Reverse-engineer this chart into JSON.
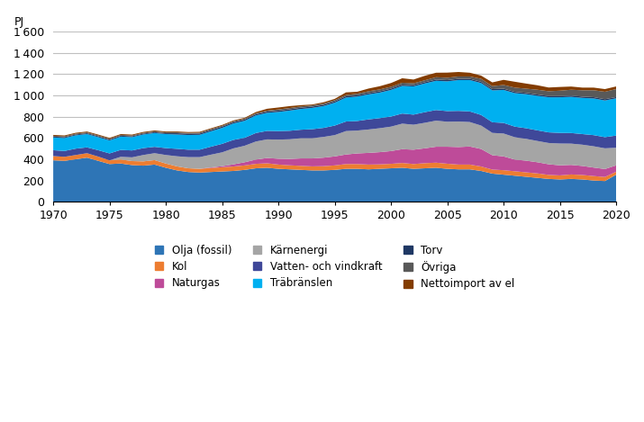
{
  "ylabel": "PJ",
  "xlim": [
    1970,
    2020
  ],
  "ylim": [
    0,
    1600
  ],
  "yticks": [
    0,
    200,
    400,
    600,
    800,
    1000,
    1200,
    1400,
    1600
  ],
  "xticks": [
    1970,
    1975,
    1980,
    1985,
    1990,
    1995,
    2000,
    2005,
    2010,
    2015,
    2020
  ],
  "years": [
    1970,
    1971,
    1972,
    1973,
    1974,
    1975,
    1976,
    1977,
    1978,
    1979,
    1980,
    1981,
    1982,
    1983,
    1984,
    1985,
    1986,
    1987,
    1988,
    1989,
    1990,
    1991,
    1992,
    1993,
    1994,
    1995,
    1996,
    1997,
    1998,
    1999,
    2000,
    2001,
    2002,
    2003,
    2004,
    2005,
    2006,
    2007,
    2008,
    2009,
    2010,
    2011,
    2012,
    2013,
    2014,
    2015,
    2016,
    2017,
    2018,
    2019,
    2020
  ],
  "series": {
    "Olja (fossil)": {
      "color": "#2E75B6",
      "values": [
        390,
        385,
        400,
        415,
        385,
        355,
        360,
        345,
        340,
        350,
        320,
        295,
        280,
        275,
        280,
        285,
        290,
        300,
        315,
        320,
        310,
        305,
        300,
        295,
        295,
        300,
        310,
        310,
        305,
        310,
        315,
        320,
        310,
        315,
        320,
        310,
        305,
        305,
        290,
        265,
        255,
        245,
        235,
        225,
        215,
        210,
        215,
        210,
        200,
        195,
        255
      ]
    },
    "Kol": {
      "color": "#ED7D31",
      "values": [
        40,
        38,
        40,
        42,
        40,
        35,
        38,
        38,
        40,
        42,
        40,
        38,
        35,
        35,
        38,
        40,
        42,
        42,
        42,
        42,
        40,
        38,
        38,
        38,
        40,
        42,
        45,
        45,
        45,
        42,
        42,
        45,
        45,
        48,
        48,
        48,
        45,
        45,
        42,
        38,
        42,
        42,
        42,
        42,
        38,
        38,
        42,
        42,
        42,
        38,
        28
      ]
    },
    "Naturgas": {
      "color": "#BE4B99",
      "values": [
        0,
        0,
        0,
        0,
        0,
        0,
        0,
        0,
        0,
        0,
        0,
        0,
        0,
        0,
        5,
        10,
        20,
        30,
        40,
        50,
        55,
        60,
        70,
        75,
        80,
        85,
        90,
        100,
        110,
        115,
        120,
        130,
        135,
        140,
        150,
        160,
        165,
        170,
        165,
        135,
        130,
        110,
        110,
        105,
        100,
        95,
        90,
        85,
        80,
        75,
        60
      ]
    },
    "Kärnenergi": {
      "color": "#A5A5A5",
      "values": [
        0,
        0,
        0,
        0,
        0,
        0,
        25,
        35,
        60,
        65,
        80,
        95,
        105,
        110,
        120,
        130,
        150,
        155,
        170,
        175,
        180,
        185,
        190,
        190,
        195,
        200,
        220,
        215,
        220,
        225,
        230,
        240,
        235,
        240,
        245,
        235,
        240,
        230,
        220,
        210,
        215,
        210,
        205,
        200,
        200,
        205,
        200,
        200,
        200,
        195,
        165
      ]
    },
    "Vatten- och vindkraft": {
      "color": "#3F4899",
      "values": [
        55,
        55,
        60,
        55,
        60,
        65,
        65,
        65,
        65,
        60,
        65,
        70,
        70,
        70,
        75,
        80,
        80,
        75,
        80,
        80,
        80,
        80,
        80,
        85,
        85,
        90,
        90,
        90,
        95,
        95,
        95,
        95,
        95,
        100,
        100,
        100,
        100,
        100,
        100,
        100,
        100,
        100,
        100,
        100,
        100,
        100,
        100,
        100,
        105,
        105,
        115
      ]
    },
    "Träbränslen": {
      "color": "#00B0F0",
      "values": [
        120,
        122,
        125,
        125,
        123,
        122,
        125,
        125,
        128,
        130,
        132,
        135,
        138,
        140,
        145,
        150,
        155,
        160,
        165,
        170,
        180,
        190,
        195,
        200,
        205,
        215,
        225,
        230,
        235,
        240,
        250,
        260,
        265,
        270,
        275,
        280,
        290,
        295,
        300,
        300,
        310,
        315,
        320,
        325,
        330,
        335,
        340,
        340,
        345,
        345,
        350
      ]
    },
    "Torv": {
      "color": "#1F3864",
      "values": [
        8,
        8,
        8,
        8,
        8,
        8,
        8,
        8,
        8,
        8,
        8,
        12,
        12,
        12,
        12,
        12,
        12,
        12,
        12,
        12,
        12,
        12,
        12,
        12,
        12,
        12,
        12,
        12,
        12,
        12,
        12,
        12,
        12,
        12,
        12,
        12,
        12,
        12,
        12,
        12,
        12,
        12,
        12,
        12,
        12,
        12,
        12,
        12,
        12,
        12,
        12
      ]
    },
    "Övriga": {
      "color": "#595959",
      "values": [
        8,
        8,
        8,
        8,
        8,
        8,
        8,
        8,
        8,
        8,
        8,
        8,
        8,
        8,
        8,
        8,
        8,
        8,
        8,
        8,
        12,
        12,
        12,
        12,
        12,
        12,
        12,
        15,
        18,
        18,
        18,
        18,
        18,
        18,
        22,
        22,
        22,
        22,
        28,
        28,
        35,
        40,
        40,
        45,
        45,
        50,
        55,
        60,
        65,
        70,
        75
      ]
    },
    "Nettoimport av el": {
      "color": "#833C00",
      "values": [
        8,
        8,
        8,
        8,
        8,
        8,
        8,
        8,
        8,
        8,
        8,
        8,
        8,
        8,
        8,
        8,
        8,
        8,
        12,
        18,
        18,
        18,
        12,
        8,
        12,
        12,
        25,
        18,
        25,
        30,
        35,
        42,
        35,
        42,
        42,
        48,
        42,
        35,
        30,
        35,
        48,
        55,
        48,
        42,
        35,
        35,
        30,
        25,
        25,
        25,
        25
      ]
    }
  },
  "legend_order": [
    "Olja (fossil)",
    "Kol",
    "Naturgas",
    "Kärnenergi",
    "Vatten- och vindkraft",
    "Träbränslen",
    "Torv",
    "Övriga",
    "Nettoimport av el"
  ],
  "background_color": "#FFFFFF",
  "grid_color": "#C0C0C0"
}
